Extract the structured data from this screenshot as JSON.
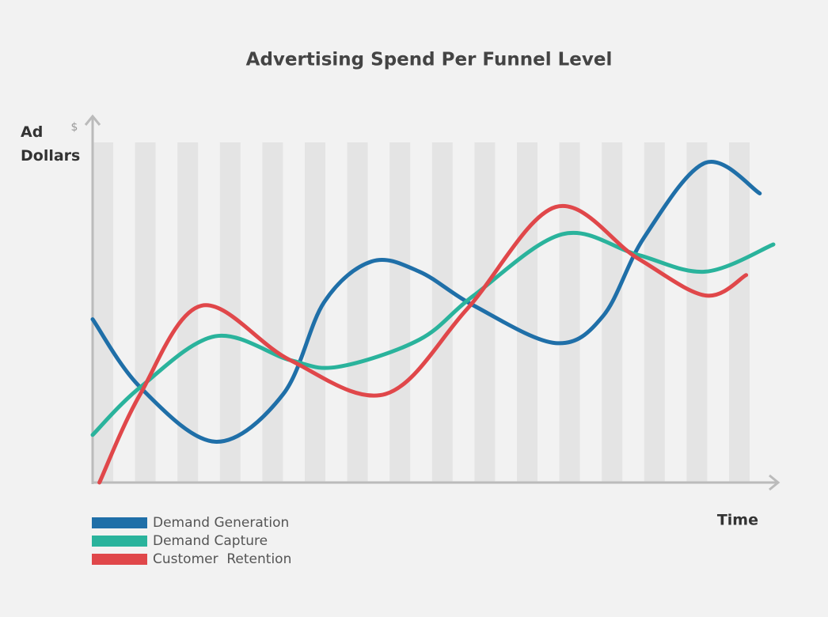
{
  "chart_data": {
    "type": "line",
    "title": "Advertising Spend Per Funnel Level",
    "y_label": "Ad Dollars",
    "y_unit": "$",
    "x_label": "Time",
    "xlim": [
      0,
      100
    ],
    "ylim": [
      0,
      100
    ],
    "series": [
      {
        "name": "Demand Generation",
        "color": "#1f6fa8",
        "x": [
          0,
          7,
          18,
          28,
          34,
          41,
          48,
          56,
          68,
          75,
          81,
          90,
          98
        ],
        "values": [
          48,
          28,
          12,
          26,
          53,
          65,
          62,
          52,
          41,
          49,
          72,
          94,
          85
        ]
      },
      {
        "name": "Demand Capture",
        "color": "#2ab39c",
        "x": [
          0,
          7,
          18,
          29,
          36,
          48,
          56,
          69,
          80,
          90,
          100
        ],
        "values": [
          14,
          28,
          43,
          36,
          34,
          42,
          55,
          73,
          67,
          62,
          70
        ]
      },
      {
        "name": "Customer  Retention",
        "color": "#e0474a",
        "x": [
          1,
          7,
          16,
          29,
          43,
          55,
          68,
          80,
          90,
          96
        ],
        "values": [
          0,
          26,
          52,
          36,
          26,
          51,
          81,
          66,
          55,
          61
        ]
      }
    ]
  }
}
